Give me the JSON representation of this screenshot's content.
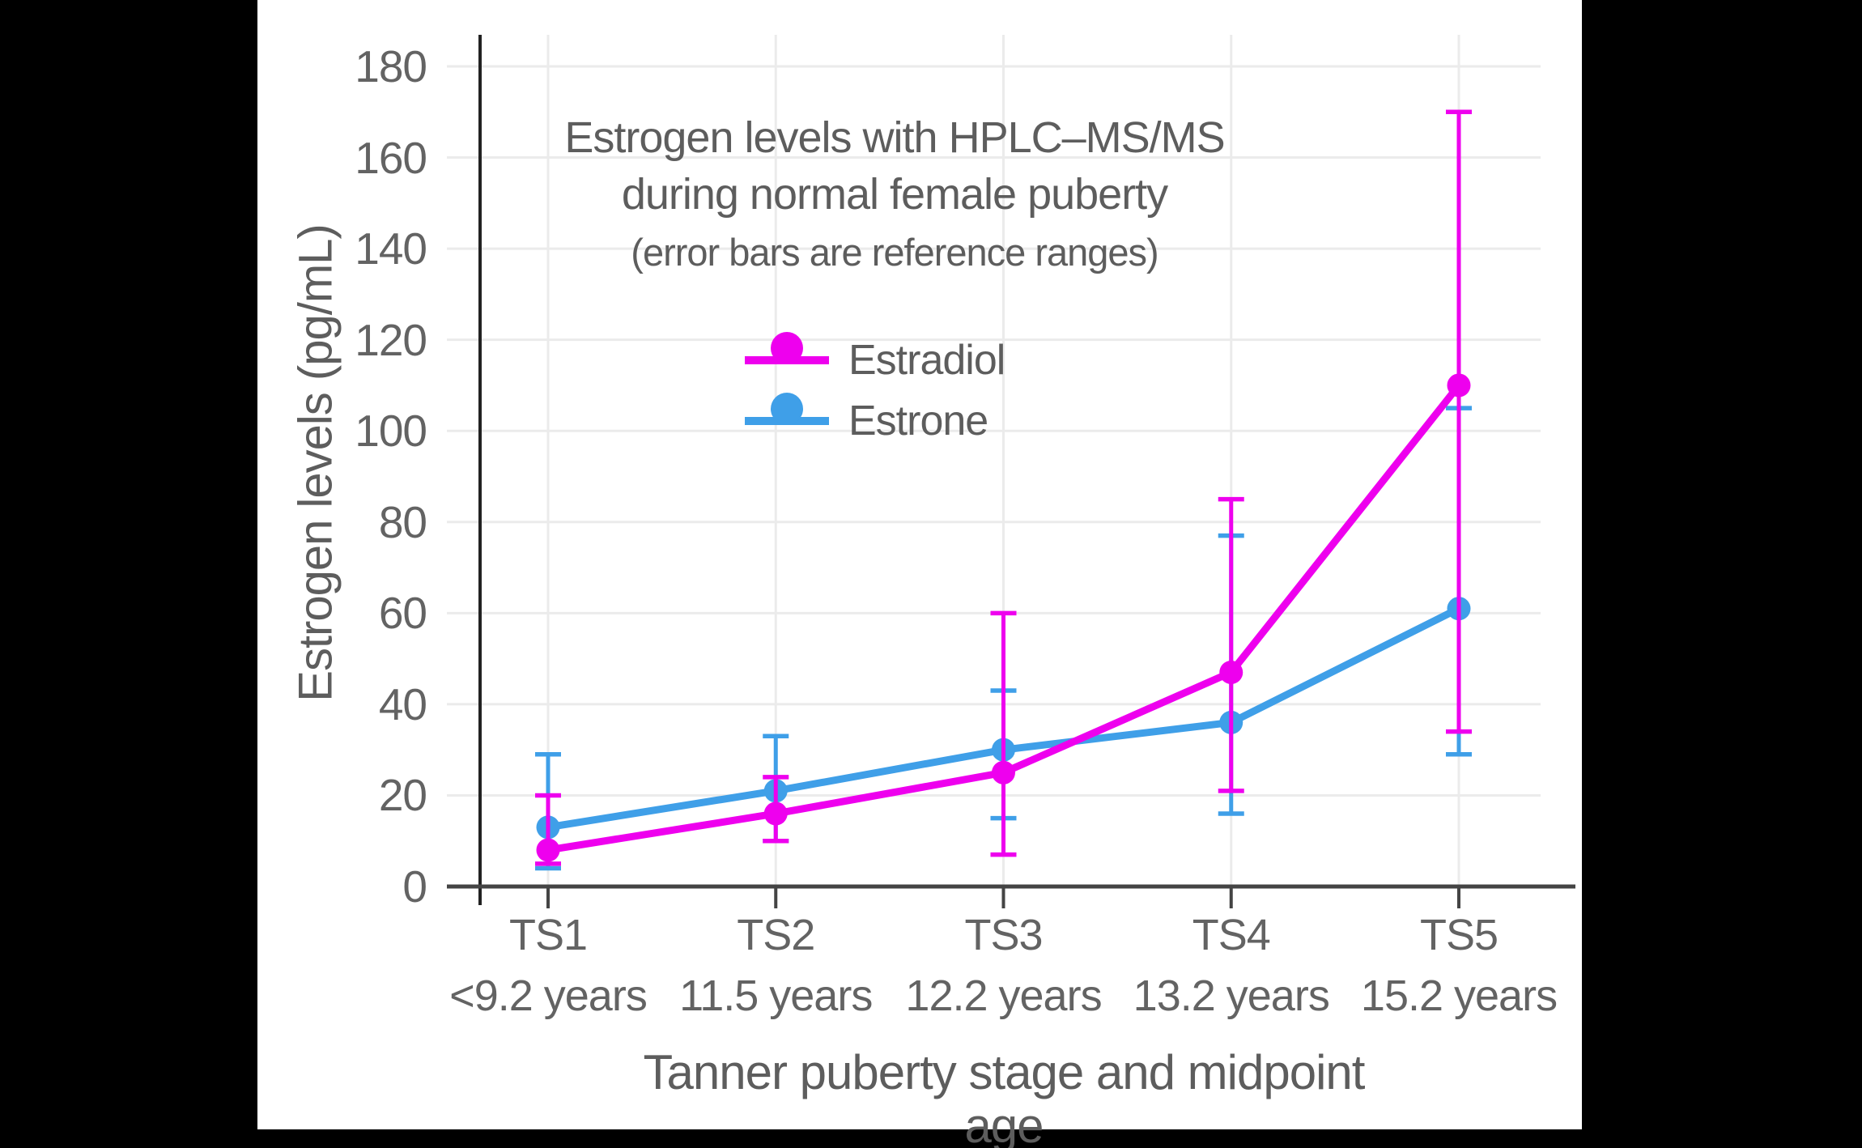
{
  "page": {
    "background_color": "#000000",
    "chart_background_color": "#ffffff"
  },
  "chart": {
    "title_line1": "Estrogen levels with HPLC–MS/MS",
    "title_line2": "during normal female puberty",
    "subtitle": "(error bars are reference ranges)",
    "y_axis_title": "Estrogen levels (pg/mL)",
    "x_axis_title": "Tanner puberty stage and midpoint age"
  },
  "chart_data": {
    "type": "line",
    "title": "Estrogen levels with HPLC–MS/MS during normal female puberty",
    "subtitle": "(error bars are reference ranges)",
    "xlabel": "Tanner puberty stage and midpoint age",
    "ylabel": "Estrogen levels (pg/mL)",
    "categories": [
      "TS1",
      "TS2",
      "TS3",
      "TS4",
      "TS5"
    ],
    "category_sublabels": [
      "<9.2 years",
      "11.5 years",
      "12.2 years",
      "13.2 years",
      "15.2 years"
    ],
    "series": [
      {
        "name": "Estradiol",
        "color": "#EE00EE",
        "values": [
          8,
          16,
          25,
          47,
          110
        ],
        "error_low": [
          5,
          10,
          7,
          21,
          34
        ],
        "error_high": [
          20,
          24,
          60,
          85,
          170
        ]
      },
      {
        "name": "Estrone",
        "color": "#3F9FE8",
        "values": [
          13,
          21,
          30,
          36,
          61
        ],
        "error_low": [
          4,
          10,
          15,
          16,
          29
        ],
        "error_high": [
          29,
          33,
          43,
          77,
          105
        ]
      }
    ],
    "ylim": [
      0,
      180
    ],
    "yticks": [
      0,
      20,
      40,
      60,
      80,
      100,
      120,
      140,
      160,
      180
    ],
    "grid": true,
    "legend_position": "upper-center",
    "error_bars_are": "reference ranges"
  },
  "style_colors": {
    "grid_color": "#EBEBEB",
    "x_axis_color": "#444444",
    "y_axis_color": "#222222",
    "tick_text_color": "#636363",
    "title_text_color": "#5d5d5d"
  }
}
